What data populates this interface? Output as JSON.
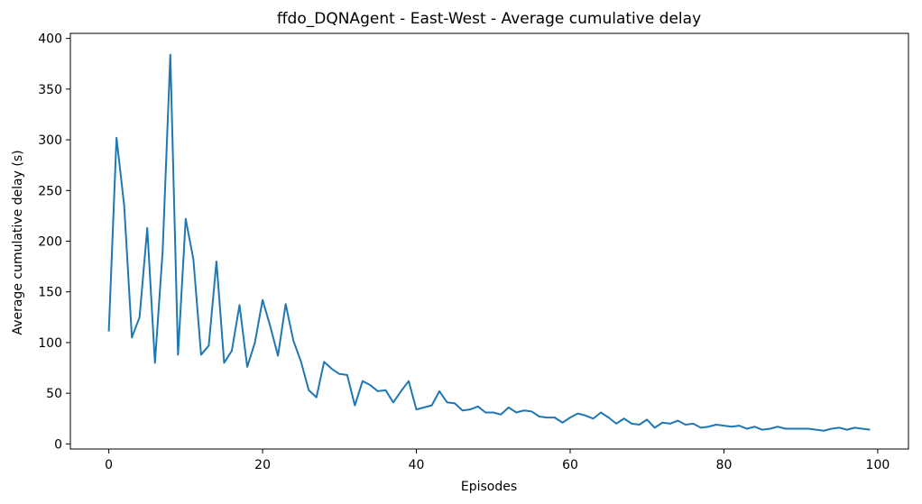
{
  "chart_data": {
    "type": "line",
    "title": "ffdo_DQNAgent - East-West - Average cumulative delay",
    "xlabel": "Episodes",
    "ylabel": "Average cumulative delay (s)",
    "xlim": [
      -5,
      104
    ],
    "ylim": [
      -5,
      405
    ],
    "xticks": [
      0,
      20,
      40,
      60,
      80,
      100
    ],
    "xtick_labels": [
      "0",
      "20",
      "40",
      "60",
      "80",
      "100"
    ],
    "yticks": [
      0,
      50,
      100,
      150,
      200,
      250,
      300,
      350,
      400
    ],
    "ytick_labels": [
      "0",
      "50",
      "100",
      "150",
      "200",
      "250",
      "300",
      "350",
      "400"
    ],
    "grid": false,
    "series": [
      {
        "color": "#1f77b4",
        "x": [
          0,
          1,
          2,
          3,
          4,
          5,
          6,
          7,
          8,
          9,
          10,
          11,
          12,
          13,
          14,
          15,
          16,
          17,
          18,
          19,
          20,
          21,
          22,
          23,
          24,
          25,
          26,
          27,
          28,
          29,
          30,
          31,
          32,
          33,
          34,
          35,
          36,
          37,
          38,
          39,
          40,
          41,
          42,
          43,
          44,
          45,
          46,
          47,
          48,
          49,
          50,
          51,
          52,
          53,
          54,
          55,
          56,
          57,
          58,
          59,
          60,
          61,
          62,
          63,
          64,
          65,
          66,
          67,
          68,
          69,
          70,
          71,
          72,
          73,
          74,
          75,
          76,
          77,
          78,
          79,
          80,
          81,
          82,
          83,
          84,
          85,
          86,
          87,
          88,
          89,
          90,
          91,
          92,
          93,
          94,
          95,
          96,
          97,
          98,
          99
        ],
        "values": [
          111,
          302,
          235,
          105,
          125,
          213,
          80,
          190,
          384,
          88,
          222,
          182,
          88,
          97,
          180,
          80,
          92,
          137,
          76,
          100,
          142,
          116,
          87,
          138,
          102,
          81,
          53,
          46,
          81,
          74,
          69,
          68,
          38,
          62,
          58,
          52,
          53,
          41,
          52,
          62,
          34,
          36,
          38,
          52,
          41,
          40,
          33,
          34,
          37,
          31,
          31,
          29,
          36,
          31,
          33,
          32,
          27,
          26,
          26,
          21,
          26,
          30,
          28,
          25,
          31,
          26,
          20,
          25,
          20,
          19,
          24,
          16,
          21,
          20,
          23,
          19,
          20,
          16,
          17,
          19,
          18,
          17,
          18,
          15,
          17,
          14,
          15,
          17,
          15,
          15,
          15,
          15,
          14,
          13,
          15,
          16,
          14,
          16,
          15,
          14
        ]
      }
    ]
  }
}
